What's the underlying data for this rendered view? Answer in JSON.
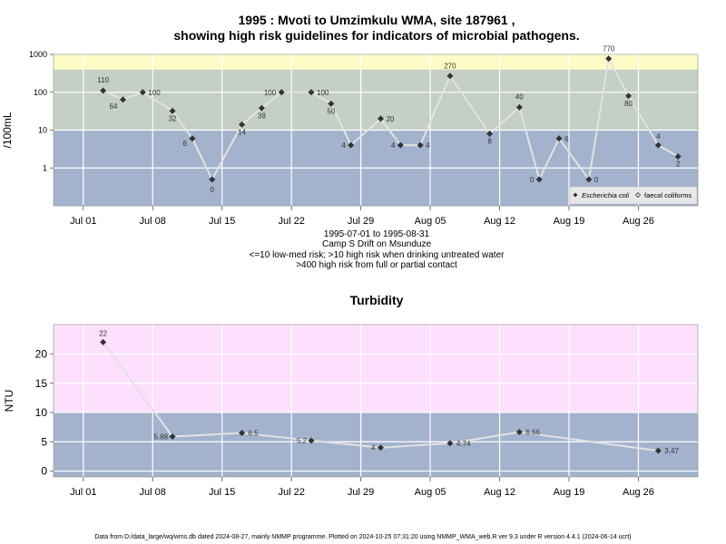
{
  "title_line1": "1995 : Mvoti to Umzimkulu WMA, site 187961 ,",
  "title_line2": "showing high risk guidelines for indicators of microbial pathogens.",
  "subtitle": {
    "date_range": "1995-07-01 to 1995-08-31",
    "site": "Camp S Drift on Msunduze",
    "risk_low": "<=10 low-med risk; >10 high risk when drinking untreated water",
    "risk_high": ">400 high risk from full or partial contact"
  },
  "footer": "Data from D:/data_large/wq/wms.db dated 2024-08-27, mainly NMMP programme. Plotted on 2024-10-25 07:31:20 using NMMP_WMA_web.R ver 9.3 under R version 4.4.1 (2024-06-14 ucrt)",
  "colors": {
    "zone_low": "#a3b3cd",
    "zone_mid": "#c5cfc5",
    "zone_high": "#fefcc6",
    "zone_turbid": "#fde0fd",
    "line": "#e2e2e2",
    "point": "#333333"
  },
  "chart_data": [
    {
      "type": "line",
      "title": "",
      "xlabel": "",
      "ylabel": "/100mL",
      "y_scale": "log",
      "ylim": [
        0.1,
        1000
      ],
      "xlim": [
        "1995-06-28",
        "1995-09-01"
      ],
      "x_ticks": [
        "Jul 01",
        "Jul 08",
        "Jul 15",
        "Jul 22",
        "Jul 29",
        "Aug 05",
        "Aug 12",
        "Aug 19",
        "Aug 26"
      ],
      "x_tick_dates": [
        "1995-07-01",
        "1995-07-08",
        "1995-07-15",
        "1995-07-22",
        "1995-07-29",
        "1995-08-05",
        "1995-08-12",
        "1995-08-19",
        "1995-08-26"
      ],
      "y_ticks": [
        "1",
        "10",
        "100",
        "1000"
      ],
      "y_tick_values": [
        1,
        10,
        100,
        1000
      ],
      "zones": [
        {
          "from": 0.1,
          "to": 10,
          "color": "#a3b3cd"
        },
        {
          "from": 10,
          "to": 400,
          "color": "#c5cfc5"
        },
        {
          "from": 400,
          "to": 1000,
          "color": "#fefcc6"
        }
      ],
      "legend": {
        "placement": "bottom-right",
        "entries": [
          "Escherichia coli",
          "faecal coliforms"
        ]
      },
      "series": [
        {
          "name": "Escherichia coli",
          "points": [
            {
              "x": "1995-07-03",
              "y": 110,
              "label": "110"
            },
            {
              "x": "1995-07-05",
              "y": 64,
              "label": "64"
            },
            {
              "x": "1995-07-07",
              "y": 100,
              "label": "100"
            },
            {
              "x": "1995-07-10",
              "y": 32,
              "label": "32"
            },
            {
              "x": "1995-07-12",
              "y": 6,
              "label": "6"
            },
            {
              "x": "1995-07-14",
              "y": 0.5,
              "label": "0"
            },
            {
              "x": "1995-07-17",
              "y": 14,
              "label": "14"
            },
            {
              "x": "1995-07-19",
              "y": 38,
              "label": "38"
            },
            {
              "x": "1995-07-21",
              "y": 100,
              "label": "100"
            },
            {
              "x": "1995-07-24",
              "y": 100,
              "label": "100"
            },
            {
              "x": "1995-07-26",
              "y": 50,
              "label": "50"
            },
            {
              "x": "1995-07-28",
              "y": 4,
              "label": "4"
            },
            {
              "x": "1995-07-31",
              "y": 20,
              "label": "20"
            },
            {
              "x": "1995-08-02",
              "y": 4,
              "label": "4"
            },
            {
              "x": "1995-08-04",
              "y": 4,
              "label": "4"
            },
            {
              "x": "1995-08-07",
              "y": 270,
              "label": "270"
            },
            {
              "x": "1995-08-11",
              "y": 8,
              "label": "8"
            },
            {
              "x": "1995-08-14",
              "y": 40,
              "label": "40"
            },
            {
              "x": "1995-08-16",
              "y": 0.5,
              "label": "0"
            },
            {
              "x": "1995-08-18",
              "y": 6,
              "label": "6"
            },
            {
              "x": "1995-08-21",
              "y": 0.5,
              "label": "0"
            },
            {
              "x": "1995-08-23",
              "y": 770,
              "label": "770"
            },
            {
              "x": "1995-08-25",
              "y": 80,
              "label": "80"
            },
            {
              "x": "1995-08-28",
              "y": 4,
              "label": "4"
            },
            {
              "x": "1995-08-30",
              "y": 2,
              "label": "2"
            }
          ]
        }
      ]
    },
    {
      "type": "line",
      "title": "Turbidity",
      "xlabel": "",
      "ylabel": "NTU",
      "ylim": [
        -1,
        25
      ],
      "xlim": [
        "1995-06-28",
        "1995-09-01"
      ],
      "x_ticks": [
        "Jul 01",
        "Jul 08",
        "Jul 15",
        "Jul 22",
        "Jul 29",
        "Aug 05",
        "Aug 12",
        "Aug 19",
        "Aug 26"
      ],
      "x_tick_dates": [
        "1995-07-01",
        "1995-07-08",
        "1995-07-15",
        "1995-07-22",
        "1995-07-29",
        "1995-08-05",
        "1995-08-12",
        "1995-08-19",
        "1995-08-26"
      ],
      "y_ticks": [
        "0",
        "5",
        "10",
        "15",
        "20"
      ],
      "y_tick_values": [
        0,
        5,
        10,
        15,
        20
      ],
      "zones": [
        {
          "from": -1,
          "to": 10,
          "color": "#a3b3cd"
        },
        {
          "from": 10,
          "to": 25,
          "color": "#fde0fd"
        }
      ],
      "series": [
        {
          "points": [
            {
              "x": "1995-07-03",
              "y": 22,
              "label": "22"
            },
            {
              "x": "1995-07-10",
              "y": 5.88,
              "label": "5.88"
            },
            {
              "x": "1995-07-17",
              "y": 6.5,
              "label": "6.5"
            },
            {
              "x": "1995-07-24",
              "y": 5.2,
              "label": "5.2"
            },
            {
              "x": "1995-07-31",
              "y": 4,
              "label": "4"
            },
            {
              "x": "1995-08-07",
              "y": 4.74,
              "label": "4.74"
            },
            {
              "x": "1995-08-14",
              "y": 6.66,
              "label": "6.66"
            },
            {
              "x": "1995-08-28",
              "y": 3.47,
              "label": "3.47"
            }
          ]
        }
      ]
    }
  ]
}
